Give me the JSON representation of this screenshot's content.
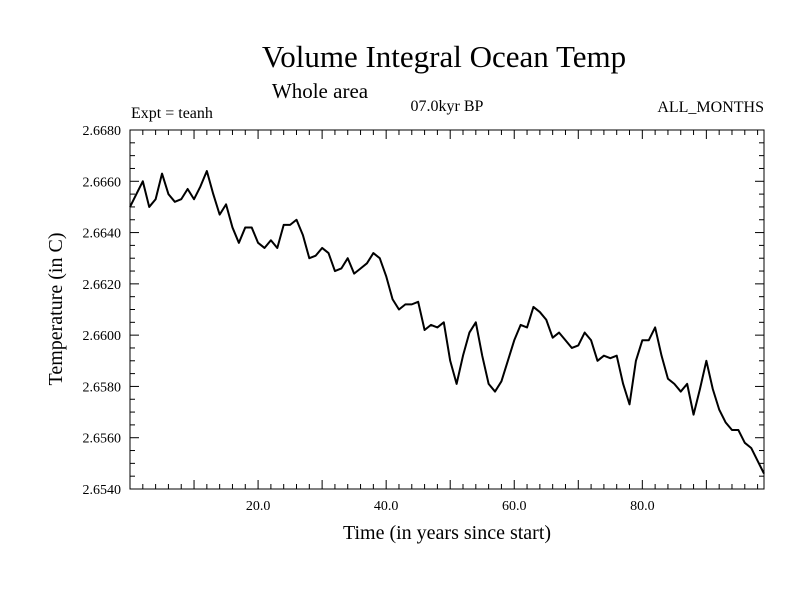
{
  "chart_data": {
    "type": "line",
    "title": "Volume Integral Ocean Temp",
    "subtitle": "Whole area",
    "experiment_label": "Expt = teanh",
    "period_label": "07.0kyr BP",
    "months_label": "ALL_MONTHS",
    "xlabel": "Time (in years since start)",
    "ylabel": "Temperature (in C)",
    "xlim": [
      0,
      99
    ],
    "ylim": [
      2.654,
      2.668
    ],
    "xticks": [
      {
        "value": 20,
        "label": "20.0"
      },
      {
        "value": 40,
        "label": "40.0"
      },
      {
        "value": 60,
        "label": "60.0"
      },
      {
        "value": 80,
        "label": "80.0"
      }
    ],
    "yticks": [
      {
        "value": 2.654,
        "label": "2.6540"
      },
      {
        "value": 2.656,
        "label": "2.6560"
      },
      {
        "value": 2.658,
        "label": "2.6580"
      },
      {
        "value": 2.66,
        "label": "2.6600"
      },
      {
        "value": 2.662,
        "label": "2.6620"
      },
      {
        "value": 2.664,
        "label": "2.6640"
      },
      {
        "value": 2.666,
        "label": "2.6660"
      },
      {
        "value": 2.668,
        "label": "2.6680"
      }
    ],
    "grid": false,
    "series": [
      {
        "name": "teanh",
        "color": "#000000",
        "x": [
          0,
          1,
          2,
          3,
          4,
          5,
          6,
          7,
          8,
          9,
          10,
          11,
          12,
          13,
          14,
          15,
          16,
          17,
          18,
          19,
          20,
          21,
          22,
          23,
          24,
          25,
          26,
          27,
          28,
          29,
          30,
          31,
          32,
          33,
          34,
          35,
          36,
          37,
          38,
          39,
          40,
          41,
          42,
          43,
          44,
          45,
          46,
          47,
          48,
          49,
          50,
          51,
          52,
          53,
          54,
          55,
          56,
          57,
          58,
          59,
          60,
          61,
          62,
          63,
          64,
          65,
          66,
          67,
          68,
          69,
          70,
          71,
          72,
          73,
          74,
          75,
          76,
          77,
          78,
          79,
          80,
          81,
          82,
          83,
          84,
          85,
          86,
          87,
          88,
          89,
          90,
          91,
          92,
          93,
          94,
          95,
          96,
          97,
          98,
          99
        ],
        "values": [
          2.665,
          2.6655,
          2.666,
          2.665,
          2.6653,
          2.6663,
          2.6655,
          2.6652,
          2.6653,
          2.6657,
          2.6653,
          2.6658,
          2.6664,
          2.6655,
          2.6647,
          2.6651,
          2.6642,
          2.6636,
          2.6642,
          2.6642,
          2.6636,
          2.6634,
          2.6637,
          2.6634,
          2.6643,
          2.6643,
          2.6645,
          2.6639,
          2.663,
          2.6631,
          2.6634,
          2.6632,
          2.6625,
          2.6626,
          2.663,
          2.6624,
          2.6626,
          2.6628,
          2.6632,
          2.663,
          2.6623,
          2.6614,
          2.661,
          2.6612,
          2.6612,
          2.6613,
          2.6602,
          2.6604,
          2.6603,
          2.6605,
          2.659,
          2.6581,
          2.6592,
          2.6601,
          2.6605,
          2.6592,
          2.6581,
          2.6578,
          2.6582,
          2.659,
          2.6598,
          2.6604,
          2.6603,
          2.6611,
          2.6609,
          2.6606,
          2.6599,
          2.6601,
          2.6598,
          2.6595,
          2.6596,
          2.6601,
          2.6598,
          2.659,
          2.6592,
          2.6591,
          2.6592,
          2.6581,
          2.6573,
          2.659,
          2.6598,
          2.6598,
          2.6603,
          2.6592,
          2.6583,
          2.6581,
          2.6578,
          2.6581,
          2.6569,
          2.6579,
          2.659,
          2.6579,
          2.6571,
          2.6566,
          2.6563,
          2.6563,
          2.6558,
          2.6556,
          2.6551,
          2.6546
        ]
      }
    ]
  }
}
